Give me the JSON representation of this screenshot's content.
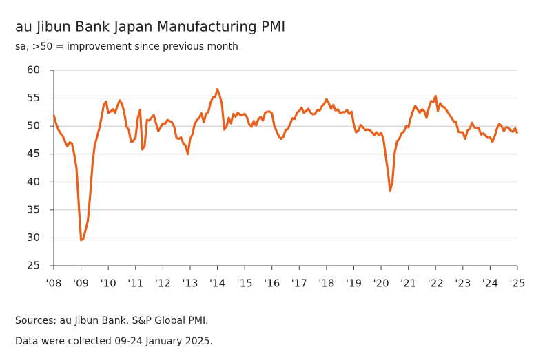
{
  "chart_data": {
    "type": "line",
    "title": "au Jibun Bank Japan Manufacturing PMI",
    "subtitle": "sa, >50 = improvement since previous month",
    "notes": [
      "Sources: au Jibun Bank, S&P Global PMI.",
      "Data were collected 09-24 January 2025."
    ],
    "x": [
      2008,
      2008.083,
      2008.167,
      2008.25,
      2008.333,
      2008.417,
      2008.5,
      2008.583,
      2008.667,
      2008.75,
      2008.833,
      2008.917,
      2009,
      2009.083,
      2009.167,
      2009.25,
      2009.333,
      2009.417,
      2009.5,
      2009.583,
      2009.667,
      2009.75,
      2009.833,
      2009.917,
      2010,
      2010.083,
      2010.167,
      2010.25,
      2010.333,
      2010.417,
      2010.5,
      2010.583,
      2010.667,
      2010.75,
      2010.833,
      2010.917,
      2011,
      2011.083,
      2011.167,
      2011.25,
      2011.333,
      2011.417,
      2011.5,
      2011.583,
      2011.667,
      2011.75,
      2011.833,
      2011.917,
      2012,
      2012.083,
      2012.167,
      2012.25,
      2012.333,
      2012.417,
      2012.5,
      2012.583,
      2012.667,
      2012.75,
      2012.833,
      2012.917,
      2013,
      2013.083,
      2013.167,
      2013.25,
      2013.333,
      2013.417,
      2013.5,
      2013.583,
      2013.667,
      2013.75,
      2013.833,
      2013.917,
      2014,
      2014.083,
      2014.167,
      2014.25,
      2014.333,
      2014.417,
      2014.5,
      2014.583,
      2014.667,
      2014.75,
      2014.833,
      2014.917,
      2015,
      2015.083,
      2015.167,
      2015.25,
      2015.333,
      2015.417,
      2015.5,
      2015.583,
      2015.667,
      2015.75,
      2015.833,
      2015.917,
      2016,
      2016.083,
      2016.167,
      2016.25,
      2016.333,
      2016.417,
      2016.5,
      2016.583,
      2016.667,
      2016.75,
      2016.833,
      2016.917,
      2017,
      2017.083,
      2017.167,
      2017.25,
      2017.333,
      2017.417,
      2017.5,
      2017.583,
      2017.667,
      2017.75,
      2017.833,
      2017.917,
      2018,
      2018.083,
      2018.167,
      2018.25,
      2018.333,
      2018.417,
      2018.5,
      2018.583,
      2018.667,
      2018.75,
      2018.833,
      2018.917,
      2019,
      2019.083,
      2019.167,
      2019.25,
      2019.333,
      2019.417,
      2019.5,
      2019.583,
      2019.667,
      2019.75,
      2019.833,
      2019.917,
      2020,
      2020.083,
      2020.167,
      2020.25,
      2020.333,
      2020.417,
      2020.5,
      2020.583,
      2020.667,
      2020.75,
      2020.833,
      2020.917,
      2021,
      2021.083,
      2021.167,
      2021.25,
      2021.333,
      2021.417,
      2021.5,
      2021.583,
      2021.667,
      2021.75,
      2021.833,
      2021.917,
      2022,
      2022.083,
      2022.167,
      2022.25,
      2022.333,
      2022.417,
      2022.5,
      2022.583,
      2022.667,
      2022.75,
      2022.833,
      2022.917,
      2023,
      2023.083,
      2023.167,
      2023.25,
      2023.333,
      2023.417,
      2023.5,
      2023.583,
      2023.667,
      2023.75,
      2023.833,
      2023.917,
      2024,
      2024.083,
      2024.167,
      2024.25,
      2024.333,
      2024.417,
      2024.5,
      2024.583,
      2024.667,
      2024.75,
      2024.833,
      2024.917,
      2025
    ],
    "series": [
      {
        "name": "PMI",
        "color": "#e8601c",
        "values": [
          52.0,
          50.5,
          49.4,
          48.7,
          48.2,
          47.2,
          46.4,
          47.1,
          46.9,
          45.0,
          42.5,
          36.0,
          29.6,
          29.8,
          31.4,
          33.0,
          37.5,
          43.0,
          46.5,
          48.0,
          49.5,
          51.5,
          53.8,
          54.4,
          52.4,
          52.6,
          53.0,
          52.4,
          53.6,
          54.6,
          54.0,
          52.5,
          50.0,
          49.3,
          47.2,
          47.3,
          48.0,
          51.5,
          52.9,
          45.8,
          46.5,
          51.1,
          51.0,
          51.5,
          52.0,
          50.5,
          49.1,
          49.8,
          50.5,
          50.4,
          51.1,
          50.9,
          50.7,
          49.9,
          47.9,
          47.7,
          48.0,
          46.9,
          46.5,
          45.0,
          47.7,
          48.5,
          50.4,
          51.1,
          51.5,
          52.3,
          50.7,
          52.2,
          52.5,
          54.2,
          55.1,
          55.2,
          56.6,
          55.5,
          53.9,
          49.4,
          49.9,
          51.5,
          50.5,
          52.2,
          51.7,
          52.4,
          52.0,
          52.0,
          52.2,
          51.6,
          50.3,
          49.9,
          50.9,
          50.1,
          51.2,
          51.7,
          51.0,
          52.4,
          52.6,
          52.6,
          52.3,
          50.1,
          49.1,
          48.2,
          47.7,
          48.1,
          49.3,
          49.5,
          50.4,
          51.4,
          51.3,
          52.4,
          52.7,
          53.3,
          52.4,
          52.7,
          53.1,
          52.4,
          52.1,
          52.2,
          52.9,
          52.8,
          53.6,
          54.0,
          54.8,
          54.1,
          53.1,
          53.8,
          52.8,
          53.0,
          52.3,
          52.5,
          52.5,
          52.9,
          52.2,
          52.6,
          50.3,
          48.9,
          49.2,
          50.2,
          49.8,
          49.3,
          49.4,
          49.3,
          48.9,
          48.4,
          48.9,
          48.4,
          48.8,
          47.8,
          44.8,
          41.9,
          38.4,
          40.1,
          45.2,
          47.2,
          47.7,
          48.7,
          49.0,
          50.0,
          49.8,
          51.4,
          52.7,
          53.6,
          53.0,
          52.4,
          53.0,
          52.7,
          51.5,
          53.2,
          54.5,
          54.3,
          55.4,
          52.7,
          54.1,
          53.5,
          53.3,
          52.7,
          52.1,
          51.5,
          50.8,
          50.7,
          49.0,
          48.9,
          48.9,
          47.7,
          49.2,
          49.5,
          50.6,
          49.8,
          49.6,
          49.6,
          48.5,
          48.7,
          48.3,
          47.9,
          48.0,
          47.2,
          48.2,
          49.6,
          50.4,
          50.0,
          49.1,
          49.8,
          49.7,
          49.2,
          49.0,
          49.6,
          48.7
        ]
      }
    ],
    "xlim": [
      2008,
      2025
    ],
    "xticks": [
      {
        "value": 2008,
        "label": "'08"
      },
      {
        "value": 2009,
        "label": "'09"
      },
      {
        "value": 2010,
        "label": "'10"
      },
      {
        "value": 2011,
        "label": "'11"
      },
      {
        "value": 2012,
        "label": "'12"
      },
      {
        "value": 2013,
        "label": "'13"
      },
      {
        "value": 2014,
        "label": "'14"
      },
      {
        "value": 2015,
        "label": "'15"
      },
      {
        "value": 2016,
        "label": "'16"
      },
      {
        "value": 2017,
        "label": "'17"
      },
      {
        "value": 2018,
        "label": "'18"
      },
      {
        "value": 2019,
        "label": "'19"
      },
      {
        "value": 2020,
        "label": "'20"
      },
      {
        "value": 2021,
        "label": "'21"
      },
      {
        "value": 2022,
        "label": "'22"
      },
      {
        "value": 2023,
        "label": "'23"
      },
      {
        "value": 2024,
        "label": "'24"
      },
      {
        "value": 2025,
        "label": "'25"
      }
    ],
    "ylim": [
      25,
      60
    ],
    "yticks": [
      25,
      30,
      35,
      40,
      45,
      50,
      55,
      60
    ],
    "grid": true
  }
}
